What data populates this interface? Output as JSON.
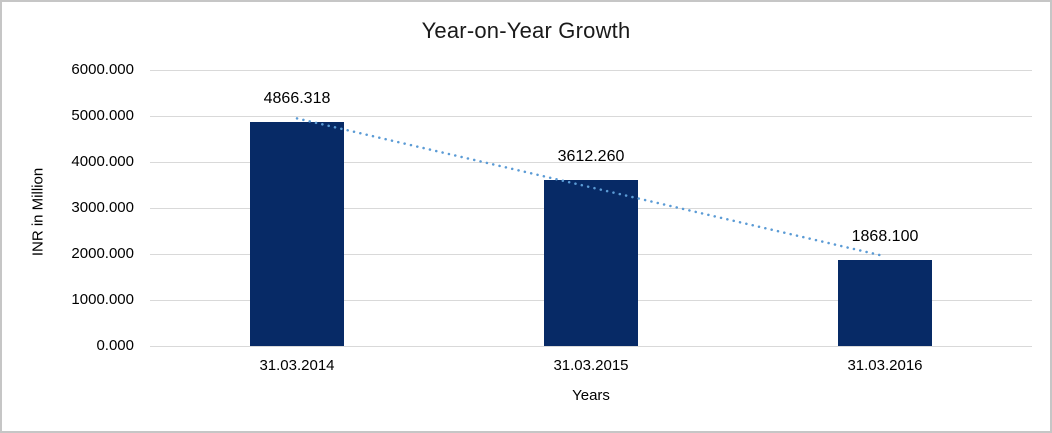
{
  "chart_data": {
    "type": "bar",
    "title": "Year-on-Year Growth",
    "xlabel": "Years",
    "ylabel": "INR in Million",
    "categories": [
      "31.03.2014",
      "31.03.2015",
      "31.03.2016"
    ],
    "values": [
      4866.318,
      3612.26,
      1868.1
    ],
    "data_labels": [
      "4866.318",
      "3612.260",
      "1868.100"
    ],
    "ylim": [
      0,
      6000
    ],
    "ytick_step": 1000,
    "ytick_labels": [
      "0.000",
      "1000.000",
      "2000.000",
      "3000.000",
      "4000.000",
      "5000.000",
      "6000.000"
    ],
    "grid": true,
    "legend": "none",
    "bar_color": "#072a66",
    "gridline_color": "#d9d9d9",
    "trendline": {
      "type": "linear",
      "style": "dotted",
      "color": "#5b9bd5",
      "start_value": 4948,
      "end_value": 1950
    }
  }
}
